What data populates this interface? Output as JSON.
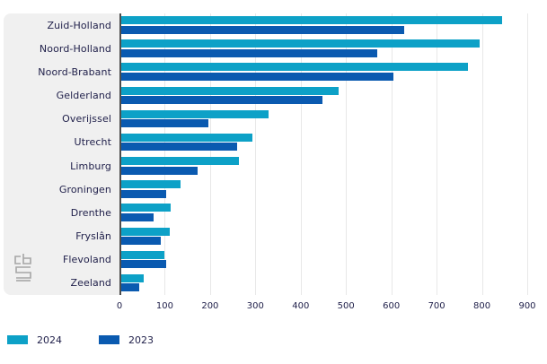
{
  "chart_data": {
    "type": "bar",
    "orientation": "horizontal",
    "title": "",
    "xlabel": "",
    "ylabel": "",
    "xlim": [
      0,
      900
    ],
    "xticks": [
      0,
      100,
      200,
      300,
      400,
      500,
      600,
      700,
      800,
      900
    ],
    "grid": true,
    "legend_position": "bottom-left",
    "categories": [
      "Zuid-Holland",
      "Noord-Holland",
      "Noord-Brabant",
      "Gelderland",
      "Overijssel",
      "Utrecht",
      "Limburg",
      "Groningen",
      "Drenthe",
      "Fryslân",
      "Flevoland",
      "Zeeland"
    ],
    "series": [
      {
        "name": "2024",
        "color": "#0da1c7",
        "values": [
          840,
          790,
          765,
          480,
          325,
          290,
          260,
          130,
          110,
          108,
          96,
          50
        ]
      },
      {
        "name": "2023",
        "color": "#0a5ab0",
        "values": [
          625,
          565,
          600,
          445,
          192,
          255,
          168,
          100,
          72,
          87,
          99,
          39
        ]
      }
    ],
    "colors": {
      "panel_bg": "#f0f0f0",
      "axis_line": "#4d4d4d",
      "gridline": "#e8e8e8",
      "text": "#21214b",
      "logo_gray": "#a6a6a6"
    }
  },
  "legend": {
    "items": [
      {
        "label": "2024",
        "color": "#0da1c7"
      },
      {
        "label": "2023",
        "color": "#0a5ab0"
      }
    ]
  }
}
